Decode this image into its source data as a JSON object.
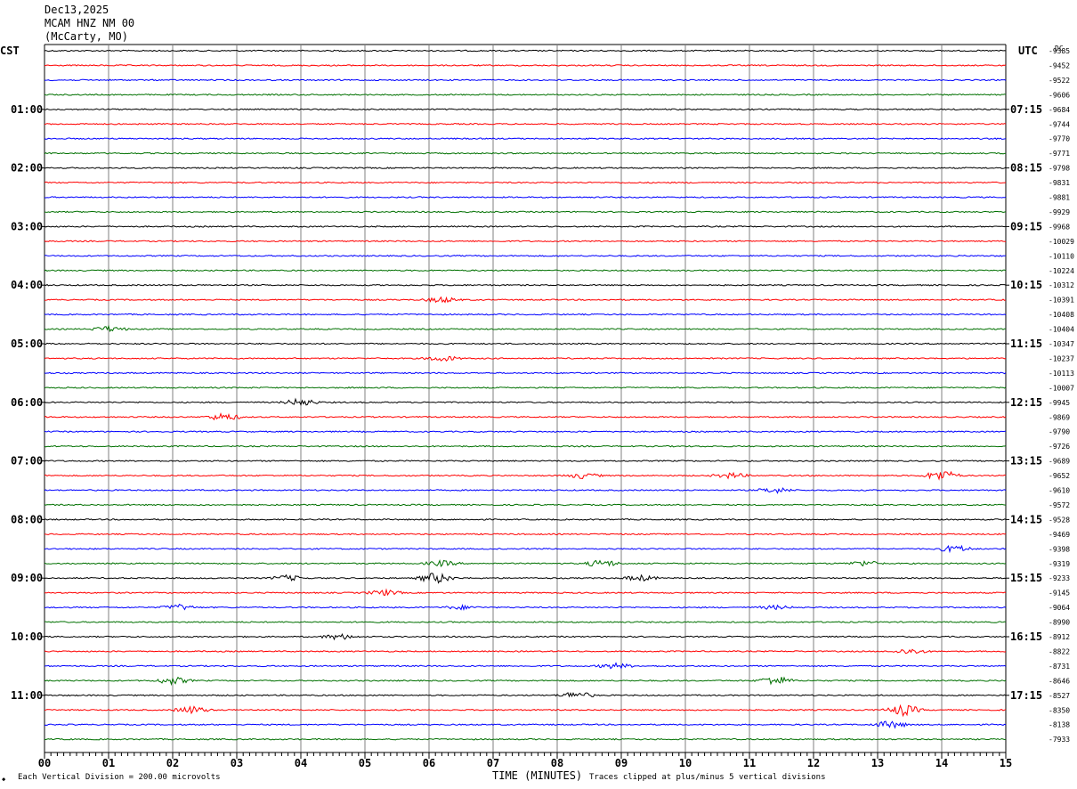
{
  "header": {
    "date": "Dec13,2025",
    "station": "MCAM HNZ NM 00",
    "location": "(McCarty, MO)"
  },
  "left_tz": "CST",
  "right_tz": "UTC",
  "dc_label": "DC",
  "chart_data": {
    "type": "line",
    "subtype": "helicorder",
    "xlabel": "TIME (MINUTES)",
    "x_ticks": [
      "00",
      "01",
      "02",
      "03",
      "04",
      "05",
      "06",
      "07",
      "08",
      "09",
      "10",
      "11",
      "12",
      "13",
      "14",
      "15"
    ],
    "xlim": [
      0,
      15
    ],
    "trace_colors": [
      "#000000",
      "#ff0000",
      "#0000ff",
      "#007000"
    ],
    "left_hour_labels": [
      "01:00",
      "02:00",
      "03:00",
      "04:00",
      "05:00",
      "06:00",
      "07:00",
      "08:00",
      "09:00",
      "10:00",
      "11:00"
    ],
    "right_hour_labels": [
      "07:15",
      "08:15",
      "09:15",
      "10:15",
      "11:15",
      "12:15",
      "13:15",
      "14:15",
      "15:15",
      "16:15",
      "17:15"
    ],
    "dc_offsets": [
      "-9385",
      "-9452",
      "-9522",
      "-9606",
      "-9684",
      "-9744",
      "-9770",
      "-9771",
      "-9798",
      "-9831",
      "-9881",
      "-9929",
      "-9968",
      "-10029",
      "-10110",
      "-10224",
      "-10312",
      "-10391",
      "-10408",
      "-10404",
      "-10347",
      "-10237",
      "-10113",
      "-10007",
      "-9945",
      "-9869",
      "-9790",
      "-9726",
      "-9689",
      "-9652",
      "-9610",
      "-9572",
      "-9528",
      "-9469",
      "-9398",
      "-9319",
      "-9233",
      "-9145",
      "-9064",
      "-8990",
      "-8912",
      "-8822",
      "-8731",
      "-8646",
      "-8527",
      "-8350",
      "-8138",
      "-7933"
    ],
    "events": [
      {
        "trace": 17,
        "minute": 6.2,
        "amp": 3
      },
      {
        "trace": 19,
        "minute": 1.0,
        "amp": 3
      },
      {
        "trace": 21,
        "minute": 6.2,
        "amp": 3
      },
      {
        "trace": 24,
        "minute": 4.0,
        "amp": 4
      },
      {
        "trace": 25,
        "minute": 2.8,
        "amp": 4
      },
      {
        "trace": 29,
        "minute": 8.4,
        "amp": 3
      },
      {
        "trace": 29,
        "minute": 10.7,
        "amp": 3
      },
      {
        "trace": 29,
        "minute": 14.0,
        "amp": 6
      },
      {
        "trace": 30,
        "minute": 11.4,
        "amp": 3
      },
      {
        "trace": 34,
        "minute": 14.2,
        "amp": 4
      },
      {
        "trace": 35,
        "minute": 6.2,
        "amp": 3
      },
      {
        "trace": 35,
        "minute": 8.7,
        "amp": 4
      },
      {
        "trace": 35,
        "minute": 12.8,
        "amp": 3
      },
      {
        "trace": 36,
        "minute": 6.1,
        "amp": 6
      },
      {
        "trace": 36,
        "minute": 9.3,
        "amp": 3
      },
      {
        "trace": 36,
        "minute": 3.8,
        "amp": 3
      },
      {
        "trace": 37,
        "minute": 5.3,
        "amp": 3
      },
      {
        "trace": 38,
        "minute": 2.1,
        "amp": 3
      },
      {
        "trace": 38,
        "minute": 6.5,
        "amp": 2
      },
      {
        "trace": 38,
        "minute": 11.4,
        "amp": 2
      },
      {
        "trace": 40,
        "minute": 4.6,
        "amp": 3
      },
      {
        "trace": 41,
        "minute": 13.5,
        "amp": 3
      },
      {
        "trace": 42,
        "minute": 8.9,
        "amp": 3
      },
      {
        "trace": 43,
        "minute": 2.0,
        "amp": 4
      },
      {
        "trace": 43,
        "minute": 11.4,
        "amp": 5
      },
      {
        "trace": 44,
        "minute": 8.3,
        "amp": 4
      },
      {
        "trace": 45,
        "minute": 2.3,
        "amp": 4
      },
      {
        "trace": 45,
        "minute": 13.4,
        "amp": 6
      },
      {
        "trace": 46,
        "minute": 13.2,
        "amp": 4
      }
    ]
  },
  "footer": {
    "division": "Each Vertical Division =  200.00 microvolts",
    "clip": "Traces clipped at plus/minus 5 vertical divisions"
  }
}
